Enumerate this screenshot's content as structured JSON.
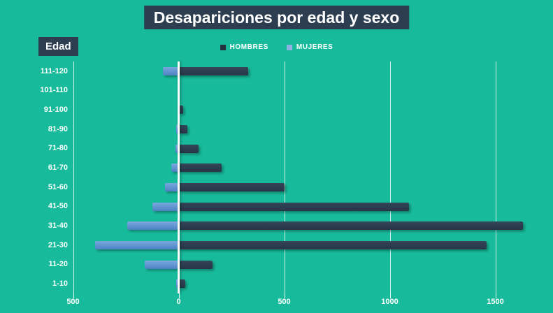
{
  "title": "Desapariciones por edad y sexo",
  "y_axis_title": "Edad",
  "legend": [
    {
      "label": "HOMBRES",
      "color": "#22303f"
    },
    {
      "label": "MUJERES",
      "color": "#8fb2e3"
    }
  ],
  "colors": {
    "background": "#17bb9b",
    "title_box": "#2c3e50",
    "hombres_bar": "#2c3e50",
    "mujeres_bar": "#5b9bd5",
    "grid": "#ffffff",
    "text": "#ffffff"
  },
  "chart_data": {
    "type": "bar",
    "orientation": "horizontal",
    "style": "pyramid (MUJERES drawn leftward as negative, HOMBRES rightward)",
    "title": "Desapariciones por edad y sexo",
    "ylabel": "Edad",
    "xlabel": "",
    "grid": true,
    "legend_position": "top-center",
    "categories": [
      "111-120",
      "101-110",
      "91-100",
      "81-90",
      "71-80",
      "61-70",
      "51-60",
      "41-50",
      "31-40",
      "21-30",
      "11-20",
      "1-10"
    ],
    "series": [
      {
        "name": "HOMBRES",
        "direction": "right",
        "color": "#2c3e50",
        "values": [
          330,
          0,
          20,
          40,
          95,
          205,
          500,
          1090,
          1630,
          1460,
          160,
          30
        ]
      },
      {
        "name": "MUJERES",
        "direction": "left",
        "color": "#5b9bd5",
        "values": [
          75,
          0,
          0,
          10,
          15,
          35,
          65,
          125,
          245,
          395,
          160,
          10
        ]
      }
    ],
    "x_ticks": [
      -500,
      0,
      500,
      1000,
      1500
    ],
    "x_tick_labels": [
      "500",
      "0",
      "500",
      "1000",
      "1500"
    ],
    "xlim": [
      -500,
      1770
    ]
  }
}
